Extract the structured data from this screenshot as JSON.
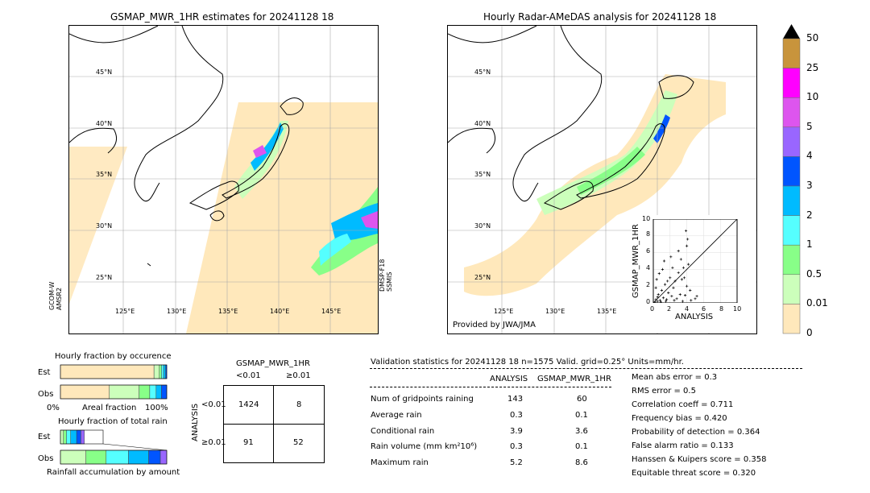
{
  "left_map": {
    "title": "GSMAP_MWR_1HR estimates for 20241128 18",
    "lat_labels": [
      "45°N",
      "40°N",
      "35°N",
      "30°N",
      "25°N"
    ],
    "lon_labels": [
      "125°E",
      "130°E",
      "135°E",
      "140°E",
      "145°E"
    ],
    "sensor_left": "GCOM-W\nAMSR2",
    "sensor_left_1": "GCOM-W",
    "sensor_left_2": "AMSR2",
    "sensor_right_1": "DMSP-F18",
    "sensor_right_2": "SSMIS"
  },
  "right_map": {
    "title": "Hourly Radar-AMeDAS analysis for 20241128 18",
    "lat_labels": [
      "45°N",
      "40°N",
      "35°N",
      "30°N",
      "25°N"
    ],
    "lon_labels": [
      "125°E",
      "130°E",
      "135°E"
    ],
    "credit": "Provided by JWA/JMA"
  },
  "scatter": {
    "xlabel": "ANALYSIS",
    "ylabel": "GSMAP_MWR_1HR",
    "ticks": [
      "0",
      "2",
      "4",
      "6",
      "8",
      "10"
    ]
  },
  "colorbar": {
    "labels": [
      "50",
      "25",
      "10",
      "5",
      "4",
      "3",
      "2",
      "1",
      "0.5",
      "0.01",
      "0"
    ],
    "colors": [
      "#c8943c",
      "#ff00ff",
      "#dd55ee",
      "#9966ff",
      "#0055ff",
      "#00bbff",
      "#55ffff",
      "#88ff88",
      "#ccffbb",
      "#ffe8bb"
    ]
  },
  "fraction_occ": {
    "title": "Hourly fraction by occurence",
    "row_est": "Est",
    "row_obs": "Obs",
    "axis_left": "0%",
    "axis_mid": "Areal fraction",
    "axis_right": "100%"
  },
  "fraction_total": {
    "title": "Hourly fraction of total rain",
    "row_est": "Est",
    "row_obs": "Obs",
    "axis_label": "Rainfall accumulation by amount"
  },
  "contingency": {
    "title": "GSMAP_MWR_1HR",
    "col_lt": "<0.01",
    "col_ge": "≥0.01",
    "row_axis": "ANALYSIS",
    "row_lt": "<0.01",
    "row_ge": "≥0.01",
    "c11": "1424",
    "c12": "8",
    "c21": "91",
    "c22": "52"
  },
  "validation": {
    "header": "Validation statistics for 20241128 18  n=1575 Valid. grid=0.25° Units=mm/hr.",
    "col_analysis": "ANALYSIS",
    "col_gsmap": "GSMAP_MWR_1HR",
    "rows": [
      {
        "label": "Num of gridpoints raining",
        "a": "143",
        "g": "60"
      },
      {
        "label": "Average rain",
        "a": "0.3",
        "g": "0.1"
      },
      {
        "label": "Conditional rain",
        "a": "3.9",
        "g": "3.6"
      },
      {
        "label": "Rain volume (mm km²10⁶)",
        "a": "0.3",
        "g": "0.1"
      },
      {
        "label": "Maximum rain",
        "a": "5.2",
        "g": "8.6"
      }
    ],
    "scores": [
      "Mean abs error =    0.3",
      "RMS error =    0.5",
      "Correlation coeff =  0.711",
      "Frequency bias =  0.420",
      "Probability of detection =  0.364",
      "False alarm ratio =  0.133",
      "Hanssen & Kuipers score =  0.358",
      "Equitable threat score =  0.320"
    ]
  },
  "chart_data": [
    {
      "type": "scatter",
      "title": "",
      "xlabel": "ANALYSIS",
      "ylabel": "GSMAP_MWR_1HR",
      "xlim": [
        0,
        10
      ],
      "ylim": [
        0,
        10
      ],
      "points": [
        [
          0.2,
          0.1
        ],
        [
          0.3,
          0.4
        ],
        [
          0.5,
          0.2
        ],
        [
          0.6,
          1.0
        ],
        [
          0.8,
          0.3
        ],
        [
          1.0,
          1.5
        ],
        [
          1.2,
          0.6
        ],
        [
          1.4,
          2.2
        ],
        [
          1.5,
          0.2
        ],
        [
          1.8,
          1.2
        ],
        [
          2.0,
          3.0
        ],
        [
          2.2,
          0.8
        ],
        [
          2.4,
          1.8
        ],
        [
          2.6,
          2.6
        ],
        [
          2.8,
          0.5
        ],
        [
          3.0,
          3.6
        ],
        [
          3.2,
          1.0
        ],
        [
          3.4,
          2.8
        ],
        [
          3.6,
          4.2
        ],
        [
          3.8,
          0.9
        ],
        [
          4.0,
          2.0
        ],
        [
          4.2,
          4.6
        ],
        [
          4.4,
          1.5
        ],
        [
          0.4,
          2.8
        ],
        [
          0.7,
          3.5
        ],
        [
          1.1,
          4.0
        ],
        [
          1.3,
          5.0
        ],
        [
          2.1,
          5.5
        ],
        [
          3.0,
          6.2
        ],
        [
          4.0,
          6.8
        ],
        [
          0.9,
          0.1
        ],
        [
          1.6,
          0.4
        ],
        [
          2.5,
          0.3
        ],
        [
          3.5,
          0.2
        ],
        [
          4.5,
          0.3
        ],
        [
          5.0,
          0.5
        ],
        [
          5.2,
          0.8
        ],
        [
          0.3,
          1.8
        ],
        [
          0.5,
          0.7
        ],
        [
          1.7,
          2.6
        ],
        [
          2.3,
          4.2
        ],
        [
          3.3,
          5.2
        ],
        [
          3.9,
          8.6
        ],
        [
          4.1,
          7.6
        ],
        [
          3.7,
          3.0
        ]
      ]
    },
    {
      "type": "bar",
      "title": "Hourly fraction by occurence",
      "categories": [
        "Est",
        "Obs"
      ],
      "series": [
        {
          "name": "0",
          "values": [
            0.88,
            0.46
          ]
        },
        {
          "name": "0.01",
          "values": [
            0.05,
            0.28
          ]
        },
        {
          "name": "0.5",
          "values": [
            0.02,
            0.1
          ]
        },
        {
          "name": "1",
          "values": [
            0.02,
            0.06
          ]
        },
        {
          "name": "2",
          "values": [
            0.02,
            0.05
          ]
        },
        {
          "name": "3",
          "values": [
            0.01,
            0.05
          ]
        }
      ]
    },
    {
      "type": "bar",
      "title": "Hourly fraction of total rain",
      "categories": [
        "Est",
        "Obs"
      ],
      "series": [
        {
          "name": "0.01",
          "values": [
            0.07,
            0.24
          ]
        },
        {
          "name": "0.5",
          "values": [
            0.07,
            0.19
          ]
        },
        {
          "name": "1",
          "values": [
            0.1,
            0.21
          ]
        },
        {
          "name": "2",
          "values": [
            0.14,
            0.19
          ]
        },
        {
          "name": "3",
          "values": [
            0.1,
            0.11
          ]
        },
        {
          "name": "4",
          "values": [
            0.08,
            0.06
          ]
        }
      ]
    }
  ]
}
